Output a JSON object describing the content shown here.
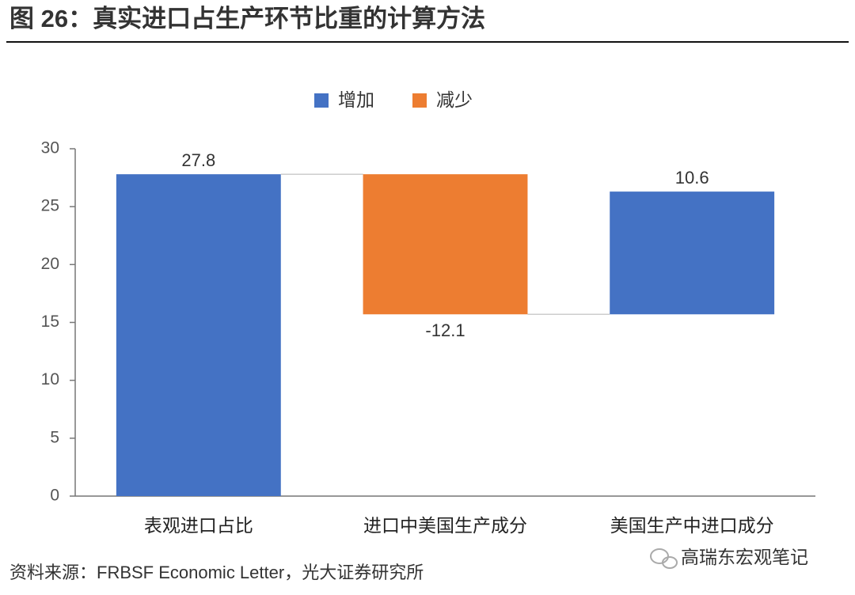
{
  "chart_data": {
    "type": "waterfall",
    "title": "图 26：真实进口占生产环节比重的计算方法",
    "categories": [
      "表观进口占比",
      "进口中美国生产成分",
      "美国生产中进口成分"
    ],
    "values": [
      27.8,
      -12.1,
      10.6
    ],
    "legend": [
      {
        "name": "增加",
        "color": "#4472c4"
      },
      {
        "name": "减少",
        "color": "#ed7d31"
      }
    ],
    "ylim": [
      0,
      30
    ],
    "yticks": [
      0,
      5,
      10,
      15,
      20,
      25,
      30
    ],
    "grid": false,
    "source": "资料来源：FRBSF Economic Letter，光大证券研究所",
    "watermark": "高瑞东宏观笔记"
  }
}
